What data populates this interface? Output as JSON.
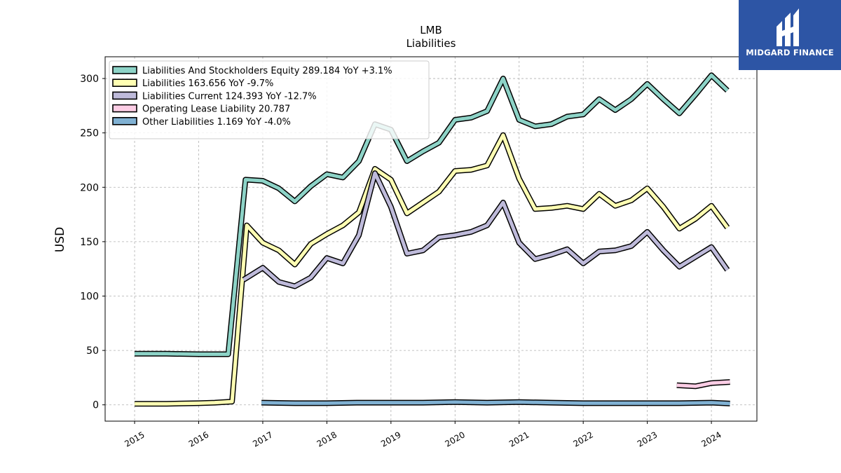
{
  "brand": {
    "name": "MIDGARD FINANCE",
    "color": "#2d55a5"
  },
  "chart_data": {
    "type": "line",
    "title": "LMB",
    "subtitle": "Liabilities",
    "xlabel": "",
    "ylabel": "USD",
    "x_ticks": [
      "2015",
      "2016",
      "2017",
      "2018",
      "2019",
      "2020",
      "2021",
      "2022",
      "2023",
      "2024"
    ],
    "y_ticks": [
      0,
      50,
      100,
      150,
      200,
      250,
      300
    ],
    "xlim": [
      2014.54,
      2024.71
    ],
    "ylim": [
      -15,
      320
    ],
    "grid": true,
    "legend_position": "upper-left",
    "series": [
      {
        "name": "Liabilities And Stockholders Equity",
        "legend": "Liabilities And Stockholders Equity  289.184 YoY +3.1%",
        "color": "#8dd3c7",
        "points": [
          [
            2015.0,
            47
          ],
          [
            2015.5,
            47
          ],
          [
            2016.0,
            46.5
          ],
          [
            2016.46,
            46.5
          ],
          [
            2016.73,
            207
          ],
          [
            2017.0,
            206
          ],
          [
            2017.25,
            199
          ],
          [
            2017.5,
            187
          ],
          [
            2017.75,
            201
          ],
          [
            2018.0,
            212
          ],
          [
            2018.25,
            209
          ],
          [
            2018.5,
            224
          ],
          [
            2018.75,
            258
          ],
          [
            2019.0,
            253
          ],
          [
            2019.25,
            224
          ],
          [
            2019.5,
            233
          ],
          [
            2019.75,
            241
          ],
          [
            2020.0,
            262
          ],
          [
            2020.25,
            264
          ],
          [
            2020.5,
            270
          ],
          [
            2020.75,
            300
          ],
          [
            2021.0,
            262
          ],
          [
            2021.25,
            256
          ],
          [
            2021.5,
            258
          ],
          [
            2021.75,
            265
          ],
          [
            2022.0,
            267
          ],
          [
            2022.25,
            281
          ],
          [
            2022.5,
            271
          ],
          [
            2022.75,
            281
          ],
          [
            2023.0,
            295
          ],
          [
            2023.25,
            281
          ],
          [
            2023.5,
            268
          ],
          [
            2023.75,
            285
          ],
          [
            2024.0,
            303
          ],
          [
            2024.25,
            289
          ]
        ]
      },
      {
        "name": "Liabilities",
        "legend": "Liabilities  163.656 YoY -9.7%",
        "color": "#ffffb3",
        "points": [
          [
            2015.0,
            1
          ],
          [
            2015.5,
            1
          ],
          [
            2016.0,
            1.5
          ],
          [
            2016.25,
            2
          ],
          [
            2016.52,
            3
          ],
          [
            2016.75,
            165
          ],
          [
            2017.0,
            149
          ],
          [
            2017.25,
            142
          ],
          [
            2017.5,
            129
          ],
          [
            2017.75,
            148
          ],
          [
            2018.0,
            157
          ],
          [
            2018.25,
            165
          ],
          [
            2018.5,
            177
          ],
          [
            2018.75,
            217
          ],
          [
            2019.0,
            207
          ],
          [
            2019.25,
            176
          ],
          [
            2019.5,
            186
          ],
          [
            2019.75,
            196
          ],
          [
            2020.0,
            215
          ],
          [
            2020.25,
            216
          ],
          [
            2020.5,
            220
          ],
          [
            2020.75,
            248
          ],
          [
            2021.0,
            208
          ],
          [
            2021.25,
            180
          ],
          [
            2021.5,
            181
          ],
          [
            2021.75,
            183
          ],
          [
            2022.0,
            180
          ],
          [
            2022.25,
            194
          ],
          [
            2022.5,
            183
          ],
          [
            2022.75,
            188
          ],
          [
            2023.0,
            199
          ],
          [
            2023.25,
            182
          ],
          [
            2023.5,
            162
          ],
          [
            2023.75,
            171
          ],
          [
            2024.0,
            183
          ],
          [
            2024.25,
            163
          ]
        ]
      },
      {
        "name": "Liabilities Current",
        "legend": "Liabilities Current  124.393 YoY -12.7%",
        "color": "#bebada",
        "points": [
          [
            2016.7,
            115
          ],
          [
            2017.0,
            126
          ],
          [
            2017.25,
            113
          ],
          [
            2017.5,
            109
          ],
          [
            2017.75,
            117
          ],
          [
            2018.0,
            135
          ],
          [
            2018.25,
            130
          ],
          [
            2018.5,
            156
          ],
          [
            2018.75,
            213
          ],
          [
            2019.0,
            182
          ],
          [
            2019.25,
            139
          ],
          [
            2019.5,
            142
          ],
          [
            2019.75,
            154
          ],
          [
            2020.0,
            156
          ],
          [
            2020.25,
            159
          ],
          [
            2020.5,
            165
          ],
          [
            2020.75,
            186
          ],
          [
            2021.0,
            149
          ],
          [
            2021.25,
            134
          ],
          [
            2021.5,
            138
          ],
          [
            2021.75,
            143
          ],
          [
            2022.0,
            130
          ],
          [
            2022.25,
            141
          ],
          [
            2022.5,
            142
          ],
          [
            2022.75,
            146
          ],
          [
            2023.0,
            159
          ],
          [
            2023.25,
            142
          ],
          [
            2023.5,
            127
          ],
          [
            2023.75,
            136
          ],
          [
            2024.0,
            145
          ],
          [
            2024.25,
            124
          ]
        ]
      },
      {
        "name": "Operating Lease Liability",
        "legend": "Operating Lease Liability  20.787",
        "color": "#fccde5",
        "points": [
          [
            2023.46,
            18
          ],
          [
            2023.75,
            17
          ],
          [
            2024.0,
            20
          ],
          [
            2024.29,
            21
          ]
        ]
      },
      {
        "name": "Other Liabilities",
        "legend": "Other Liabilities  1.169 YoY -4.0%",
        "color": "#80b1d3",
        "points": [
          [
            2016.98,
            2
          ],
          [
            2017.5,
            1.5
          ],
          [
            2018.0,
            1.5
          ],
          [
            2018.5,
            2
          ],
          [
            2019.0,
            2
          ],
          [
            2019.5,
            2
          ],
          [
            2020.0,
            2.5
          ],
          [
            2020.5,
            2
          ],
          [
            2021.0,
            2.5
          ],
          [
            2021.5,
            2
          ],
          [
            2022.0,
            1.5
          ],
          [
            2022.5,
            1.5
          ],
          [
            2023.0,
            1.5
          ],
          [
            2023.5,
            1.5
          ],
          [
            2024.0,
            2
          ],
          [
            2024.29,
            1.2
          ]
        ]
      }
    ]
  }
}
